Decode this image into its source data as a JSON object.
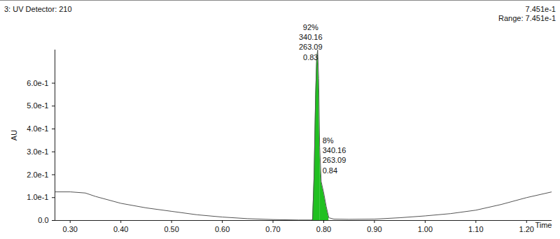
{
  "chart_data": {
    "type": "line",
    "title": "3: UV Detector: 210",
    "header_right": [
      "7.451e-1",
      "Range: 7.451e-1"
    ],
    "x_label": "Time",
    "y_label": "AU",
    "x": [
      0.27,
      0.3,
      0.33,
      0.35,
      0.4,
      0.45,
      0.5,
      0.55,
      0.6,
      0.65,
      0.7,
      0.75,
      0.775,
      0.778,
      0.781,
      0.784,
      0.786,
      0.788,
      0.79,
      0.792,
      0.795,
      0.8,
      0.805,
      0.81,
      0.82,
      0.85,
      0.9,
      0.95,
      1.0,
      1.05,
      1.1,
      1.15,
      1.2,
      1.25
    ],
    "values": [
      0.125,
      0.125,
      0.12,
      0.105,
      0.075,
      0.055,
      0.04,
      0.025,
      0.015,
      0.008,
      0.004,
      0.002,
      0.002,
      0.004,
      0.2,
      0.55,
      0.7,
      0.745,
      0.62,
      0.32,
      0.17,
      0.12,
      0.06,
      0.012,
      0.006,
      0.005,
      0.006,
      0.012,
      0.02,
      0.03,
      0.045,
      0.07,
      0.1,
      0.125
    ],
    "color": "#555555",
    "xlim": [
      0.27,
      1.25
    ],
    "ylim": [
      0,
      0.7451
    ],
    "xticks": [
      {
        "value": 0.3,
        "label": "0.30"
      },
      {
        "value": 0.4,
        "label": "0.40"
      },
      {
        "value": 0.5,
        "label": "0.50"
      },
      {
        "value": 0.6,
        "label": "0.60"
      },
      {
        "value": 0.7,
        "label": "0.70"
      },
      {
        "value": 0.8,
        "label": "0.80"
      },
      {
        "value": 0.9,
        "label": "0.90"
      },
      {
        "value": 1.0,
        "label": "1.00"
      },
      {
        "value": 1.1,
        "label": "1.10"
      },
      {
        "value": 1.2,
        "label": "1.20"
      }
    ],
    "yticks": [
      {
        "value": 0,
        "label": "0.0"
      },
      {
        "value": 0.1,
        "label": "1.0e-1"
      },
      {
        "value": 0.2,
        "label": "2.0e-1"
      },
      {
        "value": 0.3,
        "label": "3.0e-1"
      },
      {
        "value": 0.4,
        "label": "4.0e-1"
      },
      {
        "value": 0.5,
        "label": "5.0e-1"
      },
      {
        "value": 0.6,
        "label": "6.0e-1"
      }
    ],
    "grid": false,
    "peaks": [
      {
        "from": 0.778,
        "to": 0.792,
        "color": "#20c020",
        "annotation": [
          "92%",
          "340.16",
          "263.09",
          "0.83"
        ]
      },
      {
        "from": 0.792,
        "to": 0.81,
        "color": "#20c020",
        "annotation": [
          "8%",
          "340.16",
          "263.09",
          "0.84"
        ]
      }
    ]
  }
}
